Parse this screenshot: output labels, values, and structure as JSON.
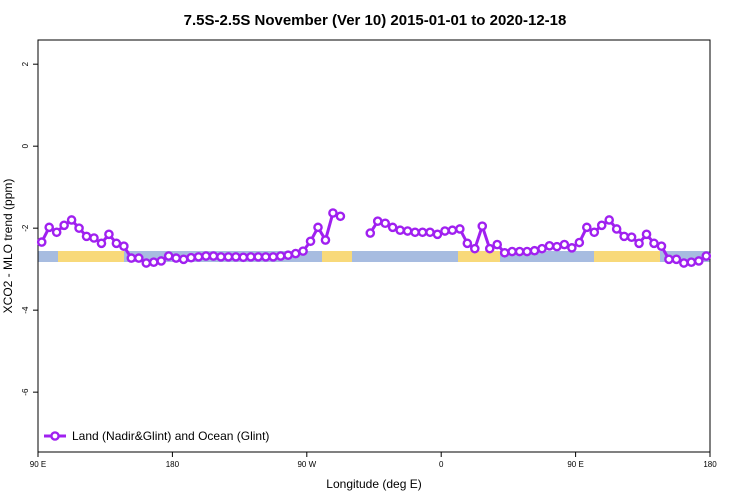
{
  "chart_data": {
    "type": "line",
    "title": "7.5S-2.5S November (Ver 10)   2015-01-01 to 2020-12-18",
    "x_label": "Longitude (deg E)",
    "y_label": "XCO2 - MLO trend (ppm)",
    "xlim": [
      90,
      540
    ],
    "ylim": [
      -7.46,
      2.59
    ],
    "xticks": [
      {
        "value": 90,
        "label": "90 E"
      },
      180,
      {
        "value": 270,
        "label": "90 W"
      },
      {
        "value": 360,
        "label": "0"
      },
      {
        "value": 450,
        "label": "90 E"
      },
      {
        "value": 540,
        "label": "180"
      }
    ],
    "yticks": [
      2,
      0,
      -2,
      -4,
      -6
    ],
    "grid": false,
    "legend": "bottom-left",
    "x": [
      92.5,
      97.5,
      102.5,
      107.5,
      112.5,
      117.5,
      122.5,
      127.5,
      132.5,
      137.5,
      142.5,
      147.5,
      152.5,
      157.5,
      162.5,
      167.5,
      172.5,
      177.5,
      182.5,
      187.5,
      192.5,
      197.5,
      202.5,
      207.5,
      212.5,
      217.5,
      222.5,
      227.5,
      232.5,
      237.5,
      242.5,
      247.5,
      252.5,
      257.5,
      262.5,
      267.5,
      272.5,
      277.5,
      282.5,
      287.5,
      292.5,
      297.5,
      302.5,
      307.5,
      312.5,
      317.5,
      322.5,
      327.5,
      332.5,
      337.5,
      342.5,
      347.5,
      352.5,
      357.5,
      362.5,
      367.5,
      372.5,
      377.5,
      382.5,
      387.5,
      392.5,
      397.5,
      402.5,
      407.5,
      412.5,
      417.5,
      422.5,
      427.5,
      432.5,
      437.5,
      442.5,
      447.5,
      452.5,
      457.5,
      462.5,
      467.5,
      472.5,
      477.5,
      482.5,
      487.5,
      492.5,
      497.5,
      502.5,
      507.5,
      512.5,
      517.5,
      522.5,
      527.5,
      532.5,
      537.5
    ],
    "series": [
      {
        "name": "Land (Nadir&Glint) and Ocean (Glint)",
        "color": "#a020f0",
        "values": [
          -2.34,
          -1.98,
          -2.1,
          -1.93,
          -1.8,
          -2.0,
          -2.2,
          -2.24,
          -2.37,
          -2.15,
          -2.37,
          -2.44,
          -2.73,
          -2.73,
          -2.85,
          -2.83,
          -2.8,
          -2.68,
          -2.73,
          -2.76,
          -2.72,
          -2.7,
          -2.68,
          -2.68,
          -2.7,
          -2.7,
          -2.7,
          -2.71,
          -2.7,
          -2.7,
          -2.7,
          -2.7,
          -2.68,
          -2.66,
          -2.62,
          -2.56,
          -2.32,
          -1.98,
          -2.29,
          -1.63,
          -1.71,
          null,
          null,
          null,
          -2.12,
          -1.83,
          -1.88,
          -1.98,
          -2.05,
          -2.07,
          -2.1,
          -2.1,
          -2.1,
          -2.15,
          -2.07,
          -2.05,
          -2.02,
          -2.37,
          -2.5,
          -1.95,
          -2.5,
          -2.4,
          -2.6,
          -2.57,
          -2.57,
          -2.57,
          -2.55,
          -2.5,
          -2.43,
          -2.45,
          -2.4,
          -2.48,
          -2.35,
          -1.98,
          -2.1,
          -1.93,
          -1.8,
          -2.02,
          -2.2,
          -2.22,
          -2.37,
          -2.15,
          -2.37,
          -2.44,
          -2.76,
          -2.76,
          -2.85,
          -2.83,
          -2.8,
          -2.68
        ]
      }
    ]
  }
}
